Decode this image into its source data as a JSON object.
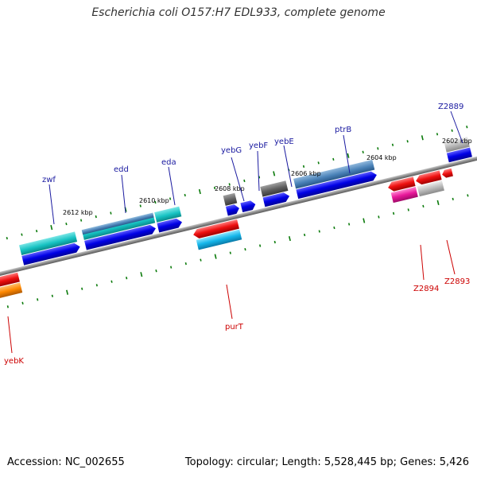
{
  "title": "Escherichia coli O157:H7 EDL933, complete genome",
  "accession_label": "Accession: NC_002655",
  "summary_label": "Topology: circular; Length: 5,528,445 bp; Genes: 5,426",
  "colors": {
    "forward_gene_label": "#1a1aa0",
    "reverse_gene_label": "#cc0000",
    "tick": "#0a7a0a",
    "backbone": "#888888",
    "cds_blue": "#0000e0",
    "gene_teal": "#19c6c6",
    "gene_steel": "#4a82b8",
    "gene_gray": "#666666",
    "rev_red": "#e81010",
    "rev_cyan": "#12b8e8",
    "rev_orange": "#ff8800",
    "rev_pink": "#e8189a",
    "rev_lightgray": "#b8b8b8"
  },
  "kbp_labels": [
    "2612 kbp",
    "2610 kbp",
    "2608 kbp",
    "2606 kbp",
    "2604 kbp",
    "2602 kbp"
  ],
  "forward_genes": [
    "zwf",
    "edd",
    "eda",
    "yebG",
    "yebF",
    "yebE",
    "ptrB",
    "Z2889"
  ],
  "reverse_genes": [
    "purT",
    "Z2894",
    "Z2893",
    "yebK"
  ]
}
